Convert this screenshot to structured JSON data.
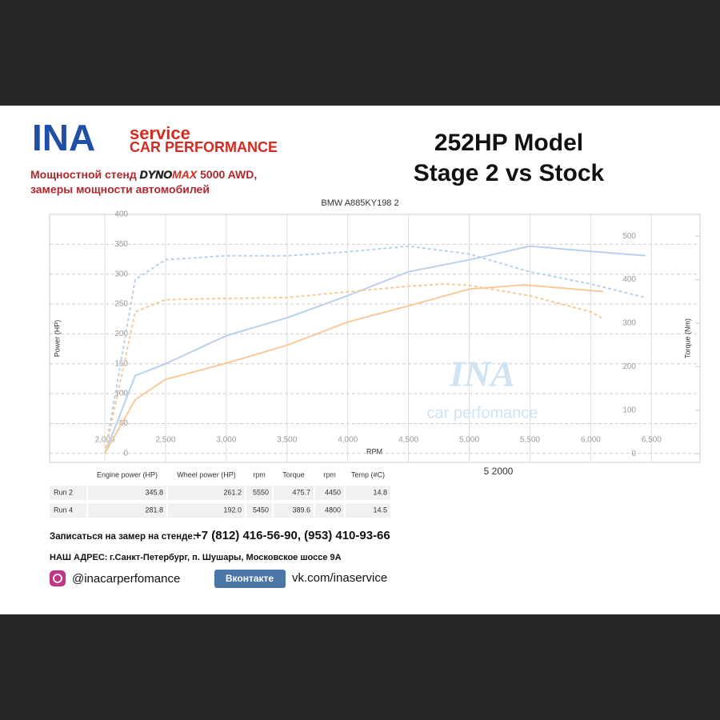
{
  "brand": {
    "logo": "INA",
    "service": "service",
    "performance": "CAR PERFORMANCE",
    "stand": "Мощностной стенд",
    "dyno": "DYNO",
    "max": "MAX",
    "awd": "5000 AWD,",
    "subtitle": "замеры мощности автомобилей"
  },
  "headline": [
    "252HP Model",
    "Stage 2 vs Stock"
  ],
  "chart_data": {
    "type": "line",
    "title": "BMW A885KY198 2",
    "xlabel": "RPM",
    "ylabel": "Power (HP)",
    "y2label": "Torque (Nm)",
    "annotation": "5 2000",
    "watermark": [
      "INA",
      "car perfomance"
    ],
    "xlim": [
      1545,
      6900
    ],
    "xticks": [
      {
        "value": 2000,
        "label": "2,000"
      },
      {
        "value": 2500,
        "label": "2,500"
      },
      {
        "value": 3000,
        "label": "3,000"
      },
      {
        "value": 3500,
        "label": "3,500"
      },
      {
        "value": 4000,
        "label": "4,000"
      },
      {
        "value": 4500,
        "label": "4,500"
      },
      {
        "value": 5000,
        "label": "5,000"
      },
      {
        "value": 5500,
        "label": "5,500"
      },
      {
        "value": 6000,
        "label": "6,000"
      },
      {
        "value": 6500,
        "label": "6,500"
      }
    ],
    "ylim": [
      -15,
      400
    ],
    "yticks": [
      0,
      50,
      100,
      150,
      200,
      250,
      300,
      350,
      400
    ],
    "y2lim": [
      -20,
      550
    ],
    "y2ticks": [
      0,
      100,
      200,
      300,
      400,
      500
    ],
    "grid": true,
    "series": [
      {
        "name": "Run 2",
        "color": "#b9d1ea",
        "dash": false,
        "x": [
          2000,
          2250,
          2500,
          3000,
          3500,
          4000,
          4500,
          5000,
          5500,
          6000,
          6450
        ],
        "values": [
          0,
          130,
          150,
          197,
          227,
          264,
          304,
          324,
          347,
          338,
          331
        ]
      },
      {
        "name": "Run 2",
        "color": "#b9d1ea",
        "dash": true,
        "axis": "y2",
        "x": [
          2000,
          2250,
          2500,
          3000,
          3500,
          4000,
          4500,
          5000,
          5500,
          6000,
          6450
        ],
        "values": [
          0,
          400,
          446,
          455,
          455,
          464,
          477,
          459,
          418,
          390,
          359
        ]
      },
      {
        "name": "Run 4",
        "color": "#f8c99a",
        "dash": false,
        "x": [
          2000,
          2250,
          2500,
          3000,
          3500,
          4000,
          4500,
          5000,
          5450,
          5750,
          6100
        ],
        "values": [
          0,
          90,
          124,
          151,
          181,
          220,
          247,
          275,
          282,
          277,
          271
        ]
      },
      {
        "name": "Run 4",
        "color": "#f8c99a",
        "dash": true,
        "axis": "y2",
        "x": [
          2000,
          2250,
          2500,
          3000,
          3500,
          4000,
          4500,
          4800,
          5000,
          5500,
          6000,
          6100
        ],
        "values": [
          0,
          326,
          354,
          357,
          359,
          372,
          385,
          390,
          387,
          363,
          326,
          311
        ]
      }
    ]
  },
  "table": {
    "header": [
      "Engine power (HP)",
      "Wheel power (HP)",
      "rpm",
      "Torque",
      "rpm",
      "Temp (#C)"
    ],
    "rows": [
      [
        "Run 2",
        "345.8",
        "261.2",
        "5550",
        "475.7",
        "4450",
        "14.8"
      ],
      [
        "Run 4",
        "281.8",
        "192.0",
        "5450",
        "389.6",
        "4800",
        "14.5"
      ]
    ]
  },
  "footer": {
    "booking": "Записаться на замер на стенде:",
    "phones": "+7 (812) 416-56-90, (953) 410-93-66",
    "address_label": "НАШ АДРЕС:",
    "address": "г.Санкт-Петербург, п. Шушары, Московское шоссе 9А",
    "instagram": "@inacarperfomance",
    "vk_logo": "Вконтакте",
    "vk": "vk.com/inaservice"
  }
}
